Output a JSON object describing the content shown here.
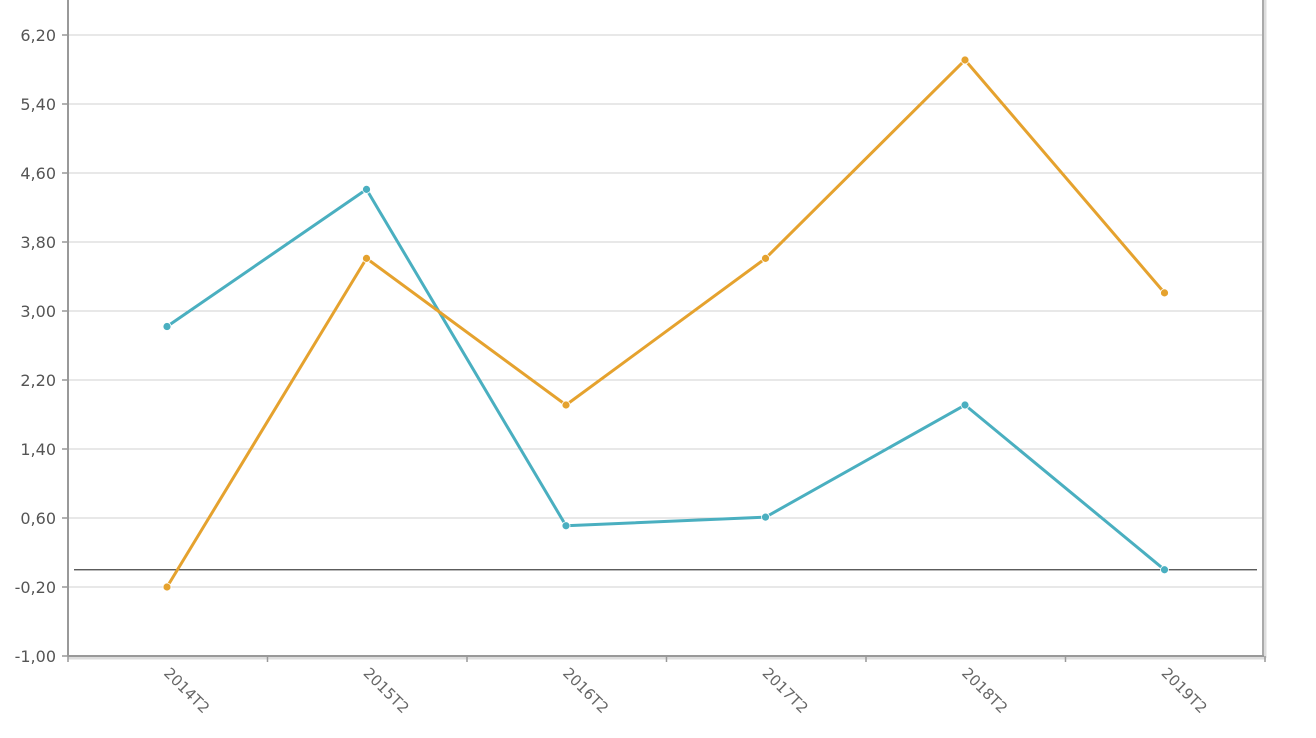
{
  "chart_data": {
    "type": "line",
    "title": "",
    "xlabel": "",
    "ylabel": "",
    "categories": [
      "2014T2",
      "2015T2",
      "2016T2",
      "2017T2",
      "2018T2",
      "2019T2"
    ],
    "y_ticks": [
      "-1,00",
      "-0,20",
      "0,60",
      "1,40",
      "2,20",
      "3,00",
      "3,80",
      "4,60",
      "5,40",
      "6,20"
    ],
    "ylim": [
      -1.0,
      7.0
    ],
    "zero_line": 0.0,
    "grid": true,
    "legend": "none",
    "series": [
      {
        "color": "#4aafc0",
        "values": [
          2.82,
          4.41,
          0.51,
          0.61,
          1.91,
          0.0
        ]
      },
      {
        "color": "#e5a22e",
        "values": [
          -0.2,
          3.61,
          1.91,
          3.61,
          5.91,
          3.21
        ]
      }
    ],
    "colors": {
      "grid": "#d0d0d0",
      "axis": "#999999",
      "zero_line": "#444444",
      "frame_shadow": "#aaaaaa"
    }
  }
}
